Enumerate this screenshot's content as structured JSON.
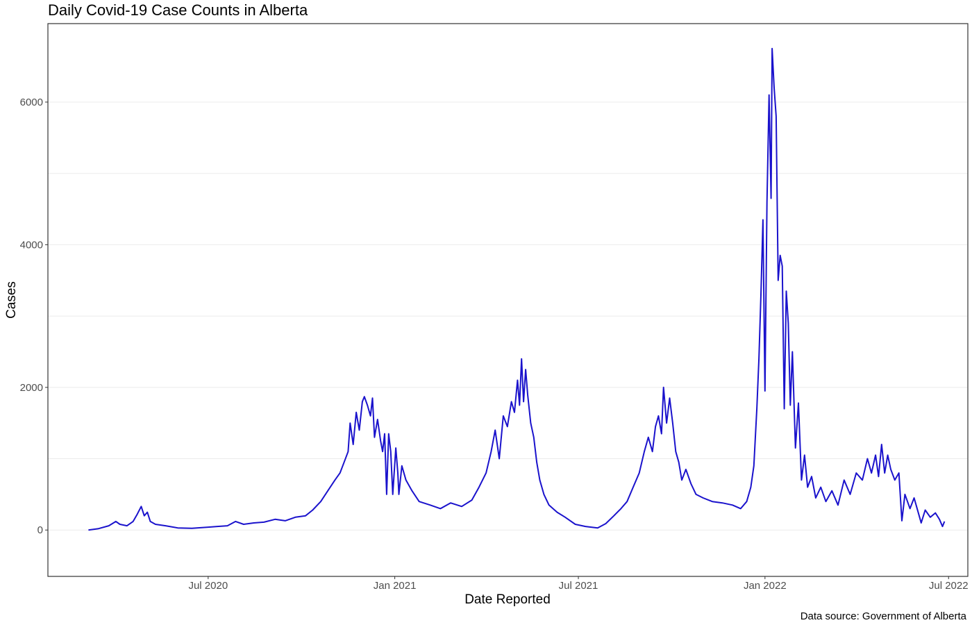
{
  "chart_data": {
    "type": "line",
    "title": "Daily Covid-19 Case Counts in Alberta",
    "xlabel": "Date Reported",
    "ylabel": "Cases",
    "caption": "Data source: Government of Alberta",
    "x_ticks": [
      "2020-07-01",
      "2021-01-01",
      "2021-07-01",
      "2022-01-01",
      "2022-07-01"
    ],
    "x_tick_labels": [
      "Jul 2020",
      "Jan 2021",
      "Jul 2021",
      "Jan 2022",
      "Jul 2022"
    ],
    "xlim": [
      "2020-01-25",
      "2022-07-20"
    ],
    "y_ticks": [
      0,
      2000,
      4000,
      6000
    ],
    "y_tick_labels": [
      "0",
      "2000",
      "4000",
      "6000"
    ],
    "y_minor_ticks": [
      1000,
      3000,
      5000
    ],
    "ylim": [
      -650,
      7100
    ],
    "grid": true,
    "series": [
      {
        "color": "#1a12cc",
        "points": [
          [
            "2020-03-05",
            0
          ],
          [
            "2020-03-15",
            20
          ],
          [
            "2020-03-25",
            60
          ],
          [
            "2020-04-01",
            120
          ],
          [
            "2020-04-05",
            80
          ],
          [
            "2020-04-12",
            60
          ],
          [
            "2020-04-18",
            120
          ],
          [
            "2020-04-22",
            220
          ],
          [
            "2020-04-26",
            330
          ],
          [
            "2020-04-29",
            200
          ],
          [
            "2020-05-02",
            250
          ],
          [
            "2020-05-05",
            120
          ],
          [
            "2020-05-10",
            80
          ],
          [
            "2020-05-20",
            60
          ],
          [
            "2020-06-01",
            30
          ],
          [
            "2020-06-15",
            25
          ],
          [
            "2020-07-01",
            40
          ],
          [
            "2020-07-10",
            50
          ],
          [
            "2020-07-20",
            60
          ],
          [
            "2020-07-28",
            120
          ],
          [
            "2020-08-05",
            80
          ],
          [
            "2020-08-15",
            100
          ],
          [
            "2020-08-25",
            110
          ],
          [
            "2020-09-05",
            150
          ],
          [
            "2020-09-15",
            130
          ],
          [
            "2020-09-25",
            180
          ],
          [
            "2020-10-05",
            200
          ],
          [
            "2020-10-12",
            280
          ],
          [
            "2020-10-20",
            400
          ],
          [
            "2020-10-27",
            550
          ],
          [
            "2020-11-03",
            700
          ],
          [
            "2020-11-08",
            800
          ],
          [
            "2020-11-12",
            950
          ],
          [
            "2020-11-16",
            1100
          ],
          [
            "2020-11-18",
            1500
          ],
          [
            "2020-11-21",
            1200
          ],
          [
            "2020-11-24",
            1650
          ],
          [
            "2020-11-27",
            1400
          ],
          [
            "2020-11-30",
            1800
          ],
          [
            "2020-12-02",
            1870
          ],
          [
            "2020-12-05",
            1750
          ],
          [
            "2020-12-08",
            1600
          ],
          [
            "2020-12-10",
            1850
          ],
          [
            "2020-12-12",
            1300
          ],
          [
            "2020-12-15",
            1550
          ],
          [
            "2020-12-18",
            1250
          ],
          [
            "2020-12-20",
            1100
          ],
          [
            "2020-12-22",
            1350
          ],
          [
            "2020-12-24",
            500
          ],
          [
            "2020-12-26",
            1350
          ],
          [
            "2020-12-28",
            1100
          ],
          [
            "2020-12-30",
            500
          ],
          [
            "2021-01-02",
            1150
          ],
          [
            "2021-01-04",
            800
          ],
          [
            "2021-01-05",
            500
          ],
          [
            "2021-01-08",
            900
          ],
          [
            "2021-01-12",
            700
          ],
          [
            "2021-01-18",
            550
          ],
          [
            "2021-01-25",
            400
          ],
          [
            "2021-02-05",
            350
          ],
          [
            "2021-02-15",
            300
          ],
          [
            "2021-02-25",
            380
          ],
          [
            "2021-03-08",
            330
          ],
          [
            "2021-03-18",
            420
          ],
          [
            "2021-03-25",
            600
          ],
          [
            "2021-04-01",
            800
          ],
          [
            "2021-04-06",
            1100
          ],
          [
            "2021-04-10",
            1400
          ],
          [
            "2021-04-14",
            1000
          ],
          [
            "2021-04-18",
            1600
          ],
          [
            "2021-04-22",
            1450
          ],
          [
            "2021-04-26",
            1800
          ],
          [
            "2021-04-29",
            1650
          ],
          [
            "2021-05-02",
            2100
          ],
          [
            "2021-05-04",
            1750
          ],
          [
            "2021-05-06",
            2400
          ],
          [
            "2021-05-08",
            1800
          ],
          [
            "2021-05-10",
            2250
          ],
          [
            "2021-05-12",
            1900
          ],
          [
            "2021-05-15",
            1500
          ],
          [
            "2021-05-18",
            1300
          ],
          [
            "2021-05-21",
            950
          ],
          [
            "2021-05-24",
            700
          ],
          [
            "2021-05-28",
            500
          ],
          [
            "2021-06-02",
            350
          ],
          [
            "2021-06-10",
            250
          ],
          [
            "2021-06-18",
            180
          ],
          [
            "2021-06-28",
            80
          ],
          [
            "2021-07-08",
            50
          ],
          [
            "2021-07-20",
            30
          ],
          [
            "2021-07-28",
            90
          ],
          [
            "2021-08-05",
            200
          ],
          [
            "2021-08-12",
            300
          ],
          [
            "2021-08-18",
            400
          ],
          [
            "2021-08-24",
            600
          ],
          [
            "2021-08-30",
            800
          ],
          [
            "2021-09-04",
            1100
          ],
          [
            "2021-09-08",
            1300
          ],
          [
            "2021-09-12",
            1100
          ],
          [
            "2021-09-15",
            1450
          ],
          [
            "2021-09-18",
            1600
          ],
          [
            "2021-09-21",
            1350
          ],
          [
            "2021-09-23",
            2000
          ],
          [
            "2021-09-26",
            1500
          ],
          [
            "2021-09-29",
            1850
          ],
          [
            "2021-10-02",
            1500
          ],
          [
            "2021-10-05",
            1100
          ],
          [
            "2021-10-08",
            950
          ],
          [
            "2021-10-11",
            700
          ],
          [
            "2021-10-15",
            850
          ],
          [
            "2021-10-20",
            650
          ],
          [
            "2021-10-25",
            500
          ],
          [
            "2021-11-01",
            450
          ],
          [
            "2021-11-10",
            400
          ],
          [
            "2021-11-20",
            380
          ],
          [
            "2021-11-30",
            350
          ],
          [
            "2021-12-08",
            300
          ],
          [
            "2021-12-14",
            400
          ],
          [
            "2021-12-18",
            600
          ],
          [
            "2021-12-21",
            900
          ],
          [
            "2021-12-24",
            1700
          ],
          [
            "2021-12-26",
            2400
          ],
          [
            "2021-12-28",
            3300
          ],
          [
            "2021-12-30",
            4350
          ],
          [
            "2022-01-01",
            1950
          ],
          [
            "2022-01-03",
            4600
          ],
          [
            "2022-01-05",
            6100
          ],
          [
            "2022-01-07",
            4650
          ],
          [
            "2022-01-08",
            6750
          ],
          [
            "2022-01-10",
            6200
          ],
          [
            "2022-01-12",
            5800
          ],
          [
            "2022-01-14",
            3500
          ],
          [
            "2022-01-16",
            3850
          ],
          [
            "2022-01-18",
            3700
          ],
          [
            "2022-01-20",
            1700
          ],
          [
            "2022-01-22",
            3350
          ],
          [
            "2022-01-24",
            2900
          ],
          [
            "2022-01-26",
            1750
          ],
          [
            "2022-01-28",
            2500
          ],
          [
            "2022-01-31",
            1150
          ],
          [
            "2022-02-03",
            1780
          ],
          [
            "2022-02-06",
            700
          ],
          [
            "2022-02-09",
            1050
          ],
          [
            "2022-02-12",
            600
          ],
          [
            "2022-02-16",
            750
          ],
          [
            "2022-02-20",
            450
          ],
          [
            "2022-02-25",
            600
          ],
          [
            "2022-03-02",
            400
          ],
          [
            "2022-03-08",
            550
          ],
          [
            "2022-03-14",
            350
          ],
          [
            "2022-03-20",
            700
          ],
          [
            "2022-03-26",
            500
          ],
          [
            "2022-04-01",
            800
          ],
          [
            "2022-04-07",
            700
          ],
          [
            "2022-04-12",
            1000
          ],
          [
            "2022-04-16",
            800
          ],
          [
            "2022-04-20",
            1050
          ],
          [
            "2022-04-23",
            750
          ],
          [
            "2022-04-26",
            1200
          ],
          [
            "2022-04-29",
            800
          ],
          [
            "2022-05-02",
            1050
          ],
          [
            "2022-05-05",
            850
          ],
          [
            "2022-05-09",
            700
          ],
          [
            "2022-05-13",
            800
          ],
          [
            "2022-05-16",
            130
          ],
          [
            "2022-05-19",
            500
          ],
          [
            "2022-05-24",
            300
          ],
          [
            "2022-05-28",
            450
          ],
          [
            "2022-06-02",
            200
          ],
          [
            "2022-06-04",
            100
          ],
          [
            "2022-06-08",
            280
          ],
          [
            "2022-06-13",
            180
          ],
          [
            "2022-06-18",
            240
          ],
          [
            "2022-06-22",
            150
          ],
          [
            "2022-06-25",
            50
          ],
          [
            "2022-06-27",
            120
          ]
        ]
      }
    ]
  }
}
